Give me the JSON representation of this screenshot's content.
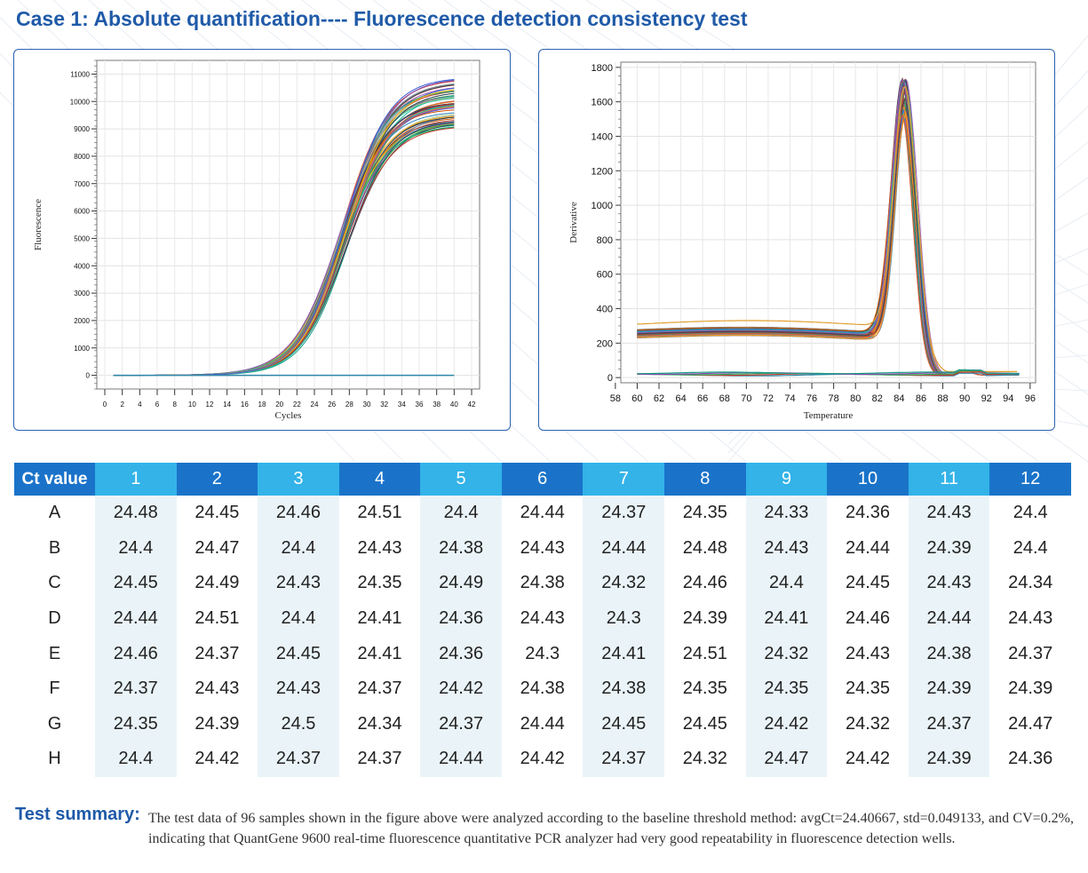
{
  "title": "Case 1: Absolute quantification---- Fluorescence detection consistency test",
  "charts": {
    "left": {
      "ylabel": "Fluorescence",
      "xlabel": "Cycles",
      "yticks": [
        "0",
        "1000",
        "2000",
        "3000",
        "4000",
        "5000",
        "6000",
        "7000",
        "8000",
        "9000",
        "10000",
        "11000"
      ],
      "xticks": [
        "0",
        "2",
        "4",
        "6",
        "8",
        "10",
        "12",
        "14",
        "16",
        "18",
        "20",
        "22",
        "24",
        "26",
        "28",
        "30",
        "32",
        "34",
        "36",
        "38",
        "40",
        "42"
      ]
    },
    "right": {
      "ylabel": "Derivative",
      "xlabel": "Temperature",
      "yticks": [
        "0",
        "200",
        "400",
        "600",
        "800",
        "1000",
        "1200",
        "1400",
        "1600",
        "1800"
      ],
      "xticks": [
        "58",
        "60",
        "62",
        "64",
        "66",
        "68",
        "70",
        "72",
        "74",
        "76",
        "78",
        "80",
        "82",
        "84",
        "86",
        "88",
        "90",
        "92",
        "94",
        "96"
      ]
    }
  },
  "chart_data": [
    {
      "type": "line",
      "description_of_series": "96 amplification curves (sigmoidal)",
      "xlabel": "Cycles",
      "ylabel": "Fluorescence",
      "xlim": [
        0,
        42
      ],
      "ylim": [
        0,
        11000
      ],
      "series": [
        {
          "values_at": {
            "x": [
              1,
              16,
              20,
              24,
              26,
              28,
              30,
              32,
              34,
              36,
              38,
              40
            ],
            "y": [
              0,
              30,
              600,
              2500,
              4300,
              6200,
              7700,
              8600,
              9100,
              9400,
              9550,
              9600
            ]
          }
        }
      ],
      "plateau_range": [
        9100,
        10900
      ],
      "flat_series_level": 0
    },
    {
      "type": "line",
      "description_of_series": "96 melt curves with peak near 84.5",
      "xlabel": "Temperature",
      "ylabel": "Derivative",
      "xlim": [
        58,
        96
      ],
      "ylim": [
        -30,
        1830
      ],
      "peak": {
        "x": 84.5,
        "y_range": [
          1530,
          1770
        ]
      },
      "baseline_range": [
        230,
        320
      ],
      "series": [
        {
          "values_at": {
            "x": [
              60,
              64,
              68,
              72,
              76,
              80,
              82,
              83,
              84,
              84.5,
              85,
              86,
              87,
              88,
              89,
              90,
              92,
              94
            ],
            "y": [
              270,
              285,
              290,
              280,
              265,
              255,
              270,
              500,
              1350,
              1650,
              1350,
              600,
              250,
              110,
              60,
              40,
              20,
              15
            ]
          }
        }
      ],
      "flat_series_level": 15
    }
  ],
  "table": {
    "header_label": "Ct value",
    "columns": [
      "1",
      "2",
      "3",
      "4",
      "5",
      "6",
      "7",
      "8",
      "9",
      "10",
      "11",
      "12"
    ],
    "rows": [
      {
        "label": "A",
        "values": [
          "24.48",
          "24.45",
          "24.46",
          "24.51",
          "24.4",
          "24.44",
          "24.37",
          "24.35",
          "24.33",
          "24.36",
          "24.43",
          "24.4"
        ]
      },
      {
        "label": "B",
        "values": [
          "24.4",
          "24.47",
          "24.4",
          "24.43",
          "24.38",
          "24.43",
          "24.44",
          "24.48",
          "24.43",
          "24.44",
          "24.39",
          "24.4"
        ]
      },
      {
        "label": "C",
        "values": [
          "24.45",
          "24.49",
          "24.43",
          "24.35",
          "24.49",
          "24.38",
          "24.32",
          "24.46",
          "24.4",
          "24.45",
          "24.43",
          "24.34"
        ]
      },
      {
        "label": "D",
        "values": [
          "24.44",
          "24.51",
          "24.4",
          "24.41",
          "24.36",
          "24.43",
          "24.3",
          "24.39",
          "24.41",
          "24.46",
          "24.44",
          "24.43"
        ]
      },
      {
        "label": "E",
        "values": [
          "24.46",
          "24.37",
          "24.45",
          "24.41",
          "24.36",
          "24.3",
          "24.41",
          "24.51",
          "24.32",
          "24.43",
          "24.38",
          "24.37"
        ]
      },
      {
        "label": "F",
        "values": [
          "24.37",
          "24.43",
          "24.43",
          "24.37",
          "24.42",
          "24.38",
          "24.38",
          "24.35",
          "24.35",
          "24.35",
          "24.39",
          "24.39"
        ]
      },
      {
        "label": "G",
        "values": [
          "24.35",
          "24.39",
          "24.5",
          "24.34",
          "24.37",
          "24.44",
          "24.45",
          "24.45",
          "24.42",
          "24.32",
          "24.37",
          "24.47"
        ]
      },
      {
        "label": "H",
        "values": [
          "24.4",
          "24.42",
          "24.37",
          "24.37",
          "24.44",
          "24.42",
          "24.37",
          "24.32",
          "24.47",
          "24.42",
          "24.39",
          "24.36"
        ]
      }
    ]
  },
  "summary": {
    "label": "Test summary:",
    "text": "The test data of 96 samples shown in the figure above were analyzed according to the baseline threshold method: avgCt=24.40667, std=0.049133, and CV=0.2%, indicating that QuantGene 9600 real-time fluorescence quantitative PCR analyzer had very good repeatability in fluorescence detection wells."
  },
  "colors": {
    "title": "#1f5aa8",
    "header_dark": "#1a73c9",
    "header_light": "#33b3e8",
    "panel_border": "#2a62b3",
    "cell_light": "#eaf4f8"
  }
}
